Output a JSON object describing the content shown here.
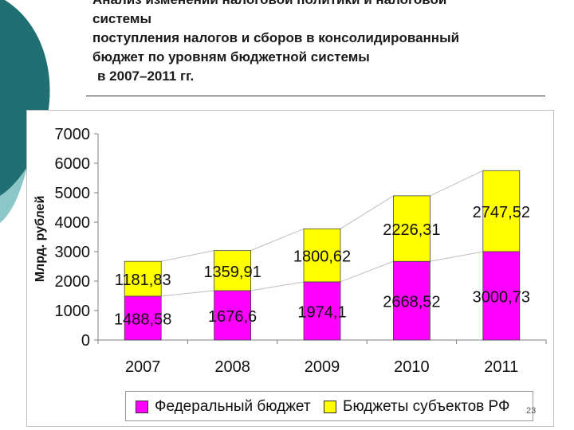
{
  "slide": {
    "title_lines": [
      "Анализ изменений налоговой политики и налоговой",
      "системы",
      "поступления налогов и сборов в консолидированный",
      "бюджет по уровням бюджетной системы",
      "в 2007–2011 гг."
    ],
    "page_number": "23"
  },
  "colors": {
    "federal": "#ff00ff",
    "regional": "#ffff00",
    "accent_teal": "#1f6f73",
    "accent_teal_light": "#8cc7c7"
  },
  "chart_data": {
    "type": "bar",
    "stacked": true,
    "categories": [
      "2007",
      "2008",
      "2009",
      "2010",
      "2011"
    ],
    "series": [
      {
        "name": "Федеральный бюджет",
        "values": [
          1488.58,
          1676.6,
          1974.1,
          2668.52,
          3000.73
        ],
        "labels": [
          "1488,58",
          "1676,6",
          "1974,1",
          "2668,52",
          "3000,73"
        ],
        "color": "#ff00ff"
      },
      {
        "name": "Бюджеты субъектов РФ",
        "values": [
          1181.83,
          1359.91,
          1800.62,
          2226.31,
          2747.52
        ],
        "labels": [
          "1181,83",
          "1359,91",
          "1800,62",
          "2226,31",
          "2747,52"
        ],
        "color": "#ffff00"
      }
    ],
    "ylabel": "Млрд. рублей",
    "ylim": [
      0,
      7000
    ],
    "yticks": [
      "0",
      "1000",
      "2000",
      "3000",
      "4000",
      "5000",
      "6000",
      "7000"
    ],
    "grid": false,
    "legend": "bottom"
  }
}
